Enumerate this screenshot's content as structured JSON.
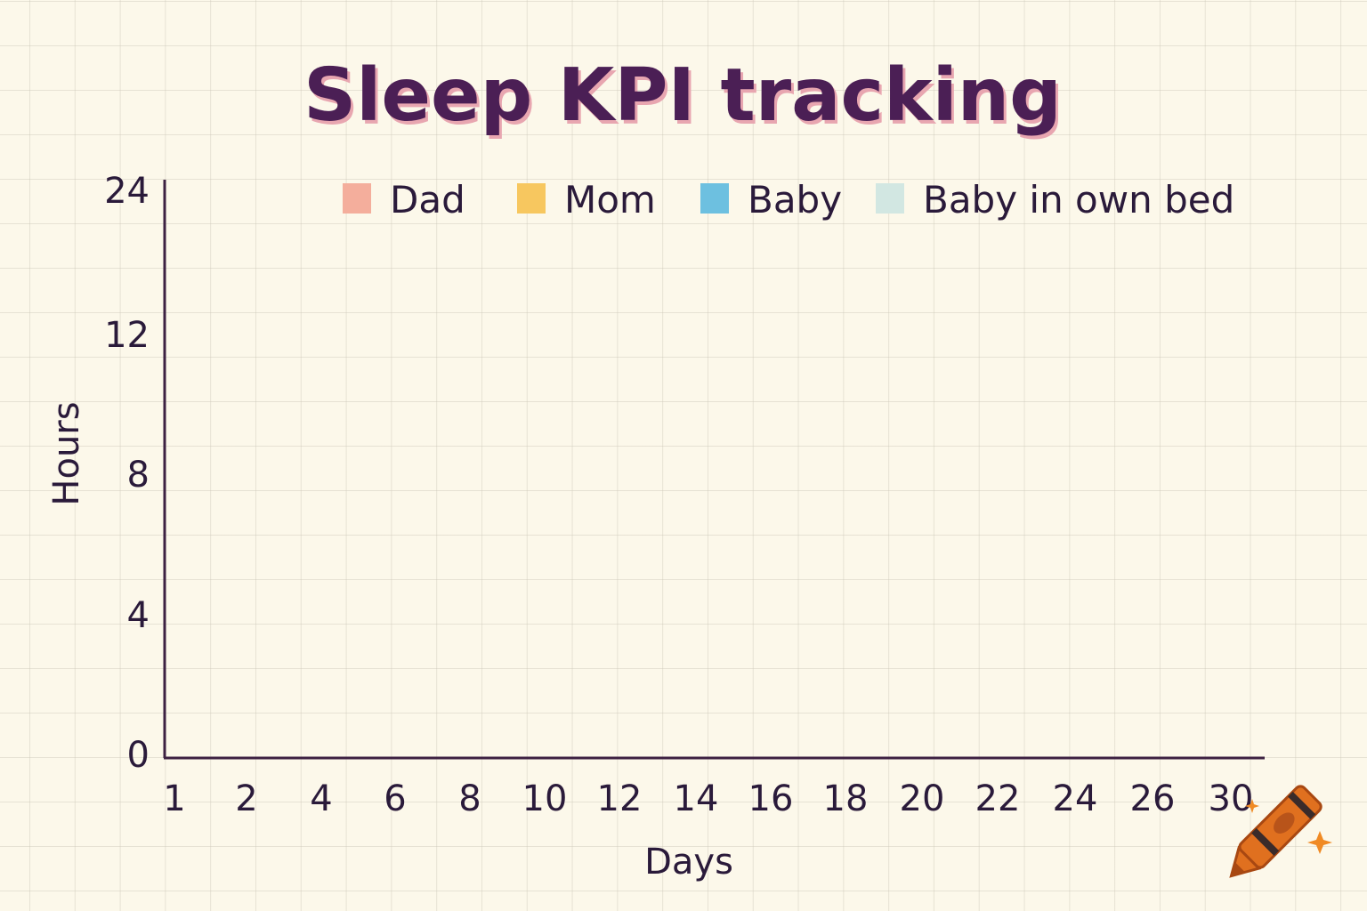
{
  "chart_data": {
    "type": "bar",
    "title": "Sleep KPI tracking",
    "xlabel": "Days",
    "ylabel": "Hours",
    "x_ticks": [
      "1",
      "2",
      "4",
      "6",
      "8",
      "10",
      "12",
      "14",
      "16",
      "18",
      "20",
      "22",
      "24",
      "26",
      "30"
    ],
    "y_ticks": [
      "0",
      "4",
      "8",
      "12",
      "24"
    ],
    "legend_position": "top",
    "series": [
      {
        "name": "Dad",
        "color": "#f4ae9c",
        "values": []
      },
      {
        "name": "Mom",
        "color": "#f7c75f",
        "values": []
      },
      {
        "name": "Baby",
        "color": "#6dc0e0",
        "values": []
      },
      {
        "name": "Baby in own bed",
        "color": "#d2e7e2",
        "values": []
      }
    ],
    "grid": true
  },
  "decoration": {
    "icon": "crayon-icon",
    "color": "#e0701f"
  }
}
